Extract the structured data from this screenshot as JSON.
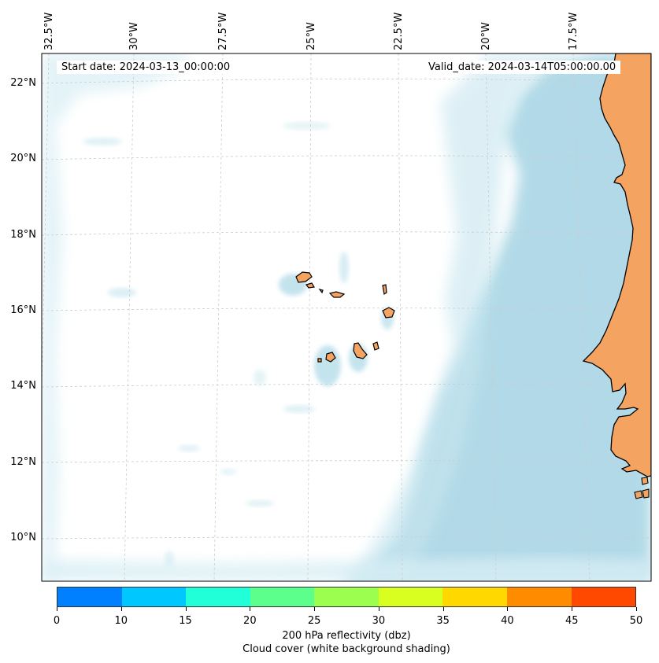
{
  "map": {
    "longitude_labels": [
      "32.5°W",
      "30°W",
      "27.5°W",
      "25°W",
      "22.5°W",
      "20°W",
      "17.5°W"
    ],
    "latitude_labels": [
      "22°N",
      "20°N",
      "18°N",
      "16°N",
      "14°N",
      "12°N",
      "10°N"
    ],
    "start_date": "Start date: 2024-03-13_00:00:00",
    "valid_date": "Valid_date: 2024-03-14T05:00:00.00",
    "colors": {
      "land": "#f4a460",
      "cloud": "#add8e6",
      "ocean": "#ffffff",
      "coastline": "#000000",
      "gridlines": "#cccccc"
    }
  },
  "colorbar": {
    "ticks": [
      "0",
      "10",
      "15",
      "20",
      "25",
      "30",
      "35",
      "40",
      "45",
      "50"
    ],
    "colors": [
      "#0080ff",
      "#00c8ff",
      "#20ffd8",
      "#5cff8c",
      "#9cff50",
      "#d8ff20",
      "#ffd800",
      "#ff8c00",
      "#ff4800"
    ],
    "label_line1": "200 hPa reflectivity (dbz)",
    "label_line2": "Cloud cover (white background shading)"
  }
}
